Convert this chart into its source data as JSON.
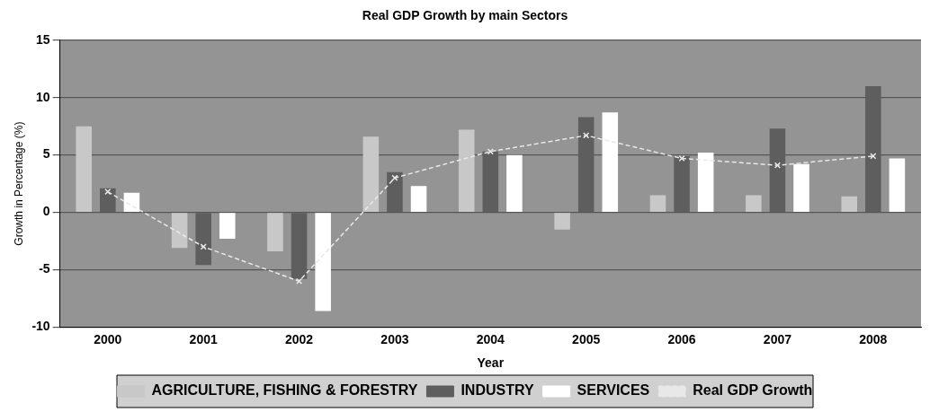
{
  "chart_data": {
    "type": "bar",
    "title": "Real GDP Growth by main Sectors",
    "xlabel": "Year",
    "ylabel": "Growth in Percentage (%)",
    "categories": [
      "2000",
      "2001",
      "2002",
      "2003",
      "2004",
      "2005",
      "2006",
      "2007",
      "2008"
    ],
    "series": [
      {
        "name": "AGRICULTURE, FISHING & FORESTRY",
        "color": "#c8c8c8",
        "values": [
          7.5,
          -3.1,
          -3.4,
          6.6,
          7.2,
          -1.5,
          1.5,
          1.5,
          1.4
        ]
      },
      {
        "name": "INDUSTRY",
        "color": "#5e5e5e",
        "values": [
          2.1,
          -4.6,
          -5.8,
          3.5,
          5.3,
          8.3,
          4.9,
          7.3,
          11.0
        ]
      },
      {
        "name": "SERVICES",
        "color": "#ffffff",
        "values": [
          1.7,
          -2.3,
          -8.6,
          2.3,
          5.0,
          8.7,
          5.2,
          4.2,
          4.7
        ]
      },
      {
        "name": "Real GDP Growth",
        "type": "line",
        "color": "#e8e8e8",
        "marker": "cross",
        "line_style": "dashed",
        "values": [
          1.8,
          -3.0,
          -6.0,
          3.0,
          5.3,
          6.7,
          4.7,
          4.1,
          4.9
        ]
      }
    ],
    "ylim": [
      -10,
      15
    ],
    "yticks": [
      -10,
      -5,
      0,
      5,
      10,
      15
    ],
    "grid": "y",
    "legend": "bottom"
  }
}
